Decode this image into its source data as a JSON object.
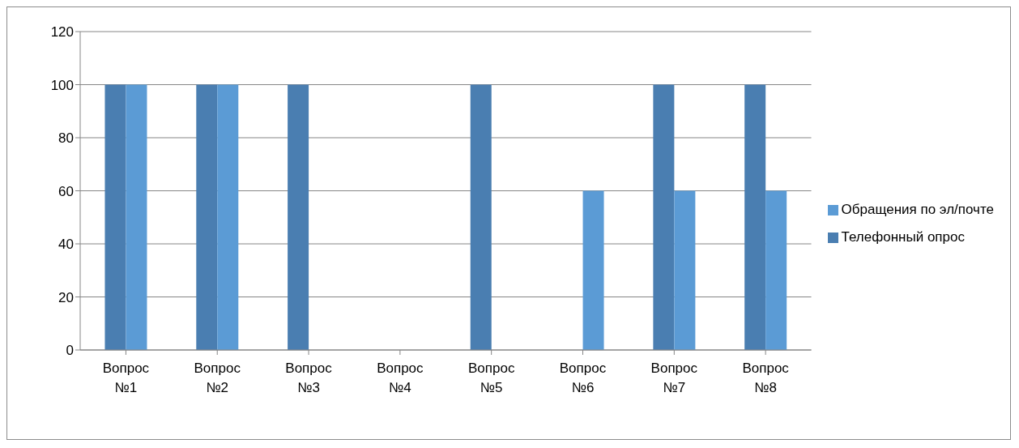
{
  "chart_data": {
    "type": "bar",
    "categories": [
      "Вопрос №1",
      "Вопрос №2",
      "Вопрос №3",
      "Вопрос №4",
      "Вопрос №5",
      "Вопрос №6",
      "Вопрос №7",
      "Вопрос №8"
    ],
    "series": [
      {
        "name": "Телефонный опрос",
        "color": "#4a7eb1",
        "values": [
          100,
          100,
          100,
          0,
          100,
          0,
          100,
          100
        ]
      },
      {
        "name": "Обращения по эл/почте",
        "color": "#5b9bd5",
        "values": [
          100,
          100,
          0,
          0,
          0,
          60,
          60,
          60
        ]
      }
    ],
    "ylim": [
      0,
      120
    ],
    "yticks": [
      0,
      20,
      40,
      60,
      80,
      100,
      120
    ],
    "grid": "y",
    "legend": "right"
  }
}
